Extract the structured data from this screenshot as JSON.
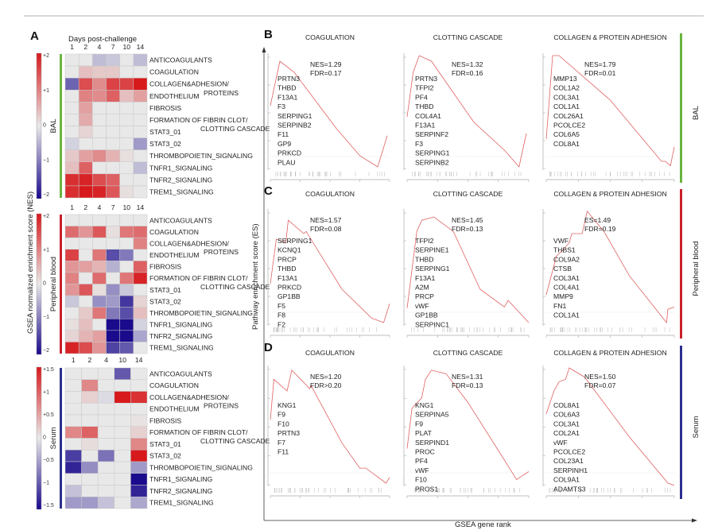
{
  "panel_labels": {
    "a": "A",
    "b": "B",
    "c": "C",
    "d": "D"
  },
  "heatmap_axis": {
    "x_title": "Days post-challenge",
    "y_title": "GSEA normalized enrichment score (NES)",
    "colors": {
      "high": "#d7191c",
      "mid": "#e8e8e8",
      "low": "#1a0a8c"
    }
  },
  "gsea_axis": {
    "y_title": "Pathway enrichment score (ES)",
    "x_title": "GSEA gene rank",
    "curve_color": "#e06060"
  },
  "chart_data": [
    {
      "type": "heatmap",
      "group": "BAL",
      "group_color": "#6ab43e",
      "days": [
        "1",
        "2",
        "4",
        "7",
        "10",
        "14"
      ],
      "scale_ticks": [
        "+2",
        "+1",
        "0",
        "−1",
        "−2"
      ],
      "range": [
        -2,
        2
      ],
      "rows": [
        {
          "label": "ANTICOAGULANTS",
          "values": [
            0,
            0,
            -0.4,
            -0.3,
            0,
            -0.4
          ]
        },
        {
          "label": "COAGULATION",
          "values": [
            0,
            0.4,
            0.3,
            0.3,
            0,
            0
          ]
        },
        {
          "label": "COLLAGEN&ADHESION/",
          "label2": "PROTEINS",
          "values": [
            -1.2,
            1.5,
            0.9,
            1.6,
            1.6,
            2
          ]
        },
        {
          "label": "ENDOTHELIUM",
          "values": [
            0,
            1,
            0.9,
            1.3,
            0.4,
            0.7
          ]
        },
        {
          "label": "FIBROSIS",
          "values": [
            0,
            0.7,
            0,
            0,
            0,
            0
          ]
        },
        {
          "label": "FORMATION OF FIBRIN CLOT/",
          "label2": "CLOTTING CASCADE",
          "values": [
            0,
            0.6,
            0,
            0,
            0,
            0
          ]
        },
        {
          "label": "STAT3_01",
          "values": [
            0,
            0.2,
            0,
            0,
            0,
            0
          ]
        },
        {
          "label": "STAT3_02",
          "values": [
            -0.2,
            0,
            0,
            0,
            0,
            -0.7
          ]
        },
        {
          "label": "THROMBOPOIETIN_SIGNALING",
          "values": [
            0.3,
            0.7,
            0.9,
            0.5,
            0.1,
            0
          ]
        },
        {
          "label": "TNFR1_SIGNALING",
          "values": [
            0.4,
            1.3,
            0,
            0,
            0,
            -0.4
          ]
        },
        {
          "label": "TNFR2_SIGNALING",
          "values": [
            1.8,
            1.9,
            1.5,
            1.3,
            0,
            0
          ]
        },
        {
          "label": "TREM1_SIGNALING",
          "values": [
            1.8,
            2,
            1.9,
            1.4,
            0.1,
            0
          ]
        }
      ]
    },
    {
      "type": "heatmap",
      "group": "Peripheral blood",
      "group_color": "#c8202a",
      "days": [
        "1",
        "2",
        "4",
        "7",
        "10",
        "14"
      ],
      "scale_ticks": [
        "+2",
        "+1",
        "0",
        "−1",
        "−2"
      ],
      "range": [
        -2,
        2
      ],
      "rows": [
        {
          "label": "ANTICOAGULANTS",
          "values": [
            0,
            0,
            0,
            0,
            0,
            0
          ]
        },
        {
          "label": "COAGULATION",
          "values": [
            1.2,
            0.8,
            1.4,
            0.1,
            1.1,
            1.2
          ]
        },
        {
          "label": "COLLAGEN&ADHESION/",
          "label2": "PROTEINS",
          "values": [
            0,
            0,
            0,
            0,
            0,
            1
          ]
        },
        {
          "label": "ENDOTHELIUM",
          "values": [
            1.6,
            0,
            1.1,
            -1.4,
            -1.0,
            0
          ]
        },
        {
          "label": "FIBROSIS",
          "values": [
            0.8,
            0.7,
            0.5,
            -0.5,
            0,
            1.3
          ]
        },
        {
          "label": "FORMATION OF FIBRIN CLOT/",
          "label2": "CLOTTING CASCADE",
          "values": [
            1.0,
            0,
            1.2,
            0,
            1.1,
            1.9
          ]
        },
        {
          "label": "STAT3_01",
          "values": [
            0.8,
            1.4,
            0.1,
            -0.8,
            -0.3,
            0
          ]
        },
        {
          "label": "STAT3_02",
          "values": [
            -0.3,
            0,
            -0.8,
            -0.7,
            -1.6,
            0.2
          ]
        },
        {
          "label": "THROMBOPOIETIN_SIGNALING",
          "values": [
            0,
            0.3,
            1.1,
            -1.0,
            -1.4,
            0.4
          ]
        },
        {
          "label": "TNFR1_SIGNALING",
          "values": [
            0.1,
            0.4,
            0,
            -2,
            -2,
            -0.2
          ]
        },
        {
          "label": "TNFR2_SIGNALING",
          "values": [
            0.2,
            0.5,
            0.7,
            -2,
            -2,
            -0.6
          ]
        },
        {
          "label": "TREM1_SIGNALING",
          "values": [
            1.9,
            1.5,
            0.8,
            -1.5,
            -1.3,
            0
          ]
        }
      ]
    },
    {
      "type": "heatmap",
      "group": "Serum",
      "group_color": "#2b2f8f",
      "days": [
        "1",
        "2",
        "4",
        "10",
        "14"
      ],
      "scale_ticks": [
        "+1.5",
        "+1",
        "+0.5",
        "0",
        "−0.5",
        "−1",
        "−1.5"
      ],
      "range": [
        -1.7,
        1.7
      ],
      "rows": [
        {
          "label": "ANTICOAGULANTS",
          "values": [
            0,
            0,
            0,
            -1.1,
            0
          ]
        },
        {
          "label": "COAGULATION",
          "values": [
            0,
            0.8,
            0,
            0,
            0
          ]
        },
        {
          "label": "COLLAGEN&ADHESION/",
          "label2": "PROTEINS",
          "values": [
            0,
            0.2,
            -0.1,
            1.7,
            1.5
          ]
        },
        {
          "label": "ENDOTHELIUM",
          "values": [
            0,
            0,
            0,
            0,
            0
          ]
        },
        {
          "label": "FIBROSIS",
          "values": [
            0,
            0,
            0,
            0,
            0.05
          ]
        },
        {
          "label": "FORMATION OF FIBRIN CLOT/",
          "label2": "CLOTTING CASCADE",
          "values": [
            0.8,
            1.1,
            0,
            0,
            0.2
          ]
        },
        {
          "label": "STAT3_01",
          "values": [
            0,
            0.1,
            0,
            0,
            0.8
          ]
        },
        {
          "label": "STAT3_02",
          "values": [
            -1.3,
            0,
            -0.9,
            0,
            1.7
          ]
        },
        {
          "label": "THROMBOPOIETIN_SIGNALING",
          "values": [
            -1.5,
            -0.7,
            0,
            0,
            -0.6
          ]
        },
        {
          "label": "TNFR1_SIGNALING",
          "values": [
            0,
            0,
            0,
            0,
            -1.7
          ]
        },
        {
          "label": "TNFR2_SIGNALING",
          "values": [
            -0.3,
            0,
            0,
            0,
            -1.5
          ]
        },
        {
          "label": "TREM1_SIGNALING",
          "values": [
            -0.6,
            -0.6,
            -0.3,
            0,
            -0.5
          ]
        }
      ]
    },
    {
      "type": "line",
      "group": "BAL",
      "group_color": "#6ab43e",
      "panels": [
        {
          "title": "COAGULATION",
          "stat1": "NES=1.29",
          "stat2": "FDR=0.17",
          "genes": [
            "PRTN3",
            "THBD",
            "F13A1",
            "F3",
            "SERPING1",
            "SERPINB2",
            "F11",
            "GP9",
            "PRKCD",
            "PLAU"
          ],
          "curve": [
            [
              0,
              0.55
            ],
            [
              0.08,
              0.95
            ],
            [
              0.2,
              0.85
            ],
            [
              0.55,
              0.35
            ],
            [
              0.75,
              0.1
            ],
            [
              0.9,
              0.0
            ],
            [
              0.98,
              0.28
            ]
          ]
        },
        {
          "title": "CLOTTING CASCADE",
          "stat1": "NES=1.32",
          "stat2": "FDR=0.16",
          "genes": [
            "PRTN3",
            "TFPI2",
            "PF4",
            "THBD",
            "COL4A1",
            "F13A1",
            "SERPINF2",
            "F3",
            "SERPING1",
            "SERPINB2"
          ],
          "curve": [
            [
              0,
              0.45
            ],
            [
              0.05,
              0.85
            ],
            [
              0.1,
              1
            ],
            [
              0.2,
              0.95
            ],
            [
              0.55,
              0.4
            ],
            [
              0.8,
              0.15
            ],
            [
              0.92,
              0.0
            ],
            [
              0.98,
              0.3
            ]
          ]
        },
        {
          "title": "COLLAGEN & PROTEIN ADHESION",
          "stat1": "NES=1.79",
          "stat2": "FDR=0.01",
          "genes": [
            "MMP13",
            "COL1A2",
            "COL3A1",
            "COL1A1",
            "COL26A1",
            "PCOLCE2",
            "COL6A5",
            "COL8A1"
          ],
          "curve": [
            [
              0,
              0.25
            ],
            [
              0.05,
              1
            ],
            [
              0.1,
              1
            ],
            [
              0.5,
              0.6
            ],
            [
              0.9,
              0.05
            ],
            [
              0.93,
              0.05
            ],
            [
              0.97,
              0.01
            ],
            [
              1,
              0.18
            ]
          ]
        }
      ]
    },
    {
      "type": "line",
      "group": "Peripheral blood",
      "group_color": "#c8202a",
      "panels": [
        {
          "title": "COAGULATION",
          "stat1": "NES=1.57",
          "stat2": "FDR=0.08",
          "genes": [
            "SERPING1",
            "KCNQ1",
            "PRCP",
            "THBD",
            "F13A1",
            "PRKCD",
            "GP1BB",
            "F5",
            "F8",
            "F2"
          ],
          "curve": [
            [
              0,
              0.35
            ],
            [
              0.05,
              0.75
            ],
            [
              0.13,
              0.72
            ],
            [
              0.15,
              0.92
            ],
            [
              0.28,
              0.8
            ],
            [
              0.3,
              0.82
            ],
            [
              0.6,
              0.3
            ],
            [
              0.85,
              0.04
            ],
            [
              0.95,
              0.0
            ],
            [
              1,
              0.17
            ]
          ]
        },
        {
          "title": "CLOTTING CASCADE",
          "stat1": "NES=1.45",
          "stat2": "FDR=0.13",
          "genes": [
            "TFPI2",
            "SERPINE1",
            "THBD",
            "SERPING1",
            "F13A1",
            "A2M",
            "PRCP",
            "vWF",
            "GP1BB",
            "SERPINC1"
          ],
          "curve": [
            [
              0,
              0.13
            ],
            [
              0.08,
              0.82
            ],
            [
              0.12,
              0.92
            ],
            [
              0.22,
              0.95
            ],
            [
              0.38,
              0.82
            ],
            [
              0.6,
              0.3
            ],
            [
              0.8,
              0.14
            ],
            [
              0.83,
              0.2
            ],
            [
              1,
              0.0
            ]
          ]
        },
        {
          "title": "COLLAGEN & PROTEIN ADHESION",
          "stat1": "ES=1.49",
          "stat2": "FDR=0.19",
          "genes": [
            "VWF",
            "THBS1",
            "COL9A2",
            "CTSB",
            "COL3A1",
            "COL4A1",
            "MMP9",
            "FN1",
            "COL1A1"
          ],
          "curve": [
            [
              0,
              0.25
            ],
            [
              0.08,
              0.6
            ],
            [
              0.13,
              0.65
            ],
            [
              0.18,
              0.72
            ],
            [
              0.2,
              0.8
            ],
            [
              0.28,
              0.8
            ],
            [
              0.32,
              1
            ],
            [
              0.45,
              0.82
            ],
            [
              0.65,
              0.42
            ],
            [
              0.94,
              0.0
            ],
            [
              0.95,
              0.12
            ],
            [
              1,
              0.14
            ]
          ]
        }
      ]
    },
    {
      "type": "line",
      "group": "Serum",
      "group_color": "#2b2f8f",
      "panels": [
        {
          "title": "COAGULATION",
          "stat1": "NES=1.20",
          "stat2": "FDR>0.20",
          "genes": [
            "KNG1",
            "F9",
            "F10",
            "PRTN3",
            "F7",
            "F11"
          ],
          "curve": [
            [
              0,
              0.55
            ],
            [
              0.03,
              0.9
            ],
            [
              0.14,
              0.8
            ],
            [
              0.18,
              0.98
            ],
            [
              0.33,
              0.82
            ],
            [
              0.34,
              0.85
            ],
            [
              0.6,
              0.35
            ],
            [
              0.75,
              0.13
            ],
            [
              0.8,
              0.13
            ],
            [
              0.97,
              0
            ],
            [
              1,
              0.05
            ]
          ]
        },
        {
          "title": "CLOTTING CASCADE",
          "stat1": "NES=1.31",
          "stat2": "FDR=0.13",
          "genes": [
            "KNG1",
            "SERPINA5",
            "F9",
            "PLAT",
            "SERPIND1",
            "PROC",
            "PF4",
            "vWF",
            "F10",
            "PROS1"
          ],
          "curve": [
            [
              0,
              0.3
            ],
            [
              0.04,
              0.65
            ],
            [
              0.12,
              0.74
            ],
            [
              0.15,
              0.9
            ],
            [
              0.2,
              0.98
            ],
            [
              0.32,
              0.95
            ],
            [
              0.5,
              0.7
            ],
            [
              0.8,
              0.2
            ],
            [
              0.9,
              0.03
            ],
            [
              0.94,
              0.06
            ],
            [
              1,
              0.1
            ]
          ]
        },
        {
          "title": "COLLAGEN & PROTEIN ADHESION",
          "stat1": "NES=1.50",
          "stat2": "FDR=0.07",
          "genes": [
            "COL8A1",
            "COL6A3",
            "COL3A1",
            "COL2A1",
            "vWF",
            "PCOLCE2",
            "COL23A1",
            "SERPINH1",
            "COL9A1",
            "ADAMTS3"
          ],
          "curve": [
            [
              0,
              0.6
            ],
            [
              0.06,
              0.8
            ],
            [
              0.1,
              0.88
            ],
            [
              0.15,
              0.9
            ],
            [
              0.18,
              1
            ],
            [
              0.3,
              0.92
            ],
            [
              0.65,
              0.4
            ],
            [
              0.95,
              0
            ],
            [
              1,
              -0.02
            ]
          ]
        }
      ]
    }
  ]
}
